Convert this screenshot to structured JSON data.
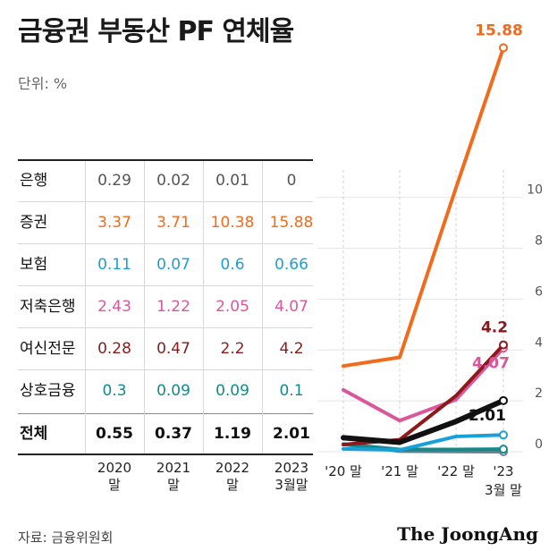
{
  "title": "금융권 부동산 PF 연체율",
  "unit": "단위: %",
  "source": "자료: 금융위원회",
  "brand": "The JoongAng",
  "table": {
    "columns": [
      {
        "line1": "2020",
        "line2": "말"
      },
      {
        "line1": "2021",
        "line2": "말"
      },
      {
        "line1": "2022",
        "line2": "말"
      },
      {
        "line1": "2023",
        "line2": "3월말"
      }
    ],
    "rows": [
      {
        "label": "은행",
        "color": "#555555",
        "values": [
          "0.29",
          "0.02",
          "0.01",
          "0"
        ]
      },
      {
        "label": "증권",
        "color": "#f26b1d",
        "values": [
          "3.37",
          "3.71",
          "10.38",
          "15.88"
        ]
      },
      {
        "label": "보험",
        "color": "#1aa0d8",
        "values": [
          "0.11",
          "0.07",
          "0.6",
          "0.66"
        ]
      },
      {
        "label": "저축은행",
        "color": "#d9579a",
        "values": [
          "2.43",
          "1.22",
          "2.05",
          "4.07"
        ]
      },
      {
        "label": "여신전문",
        "color": "#8c1a1a",
        "values": [
          "0.28",
          "0.47",
          "2.2",
          "4.2"
        ]
      },
      {
        "label": "상호금융",
        "color": "#138a8a",
        "values": [
          "0.3",
          "0.09",
          "0.09",
          "0.1"
        ]
      },
      {
        "label": "전체",
        "color": "#111111",
        "values": [
          "0.55",
          "0.37",
          "1.19",
          "2.01"
        ]
      }
    ]
  },
  "chart_data": {
    "type": "line",
    "categories": [
      "'20 말",
      "'21 말",
      "'22 말",
      "'23 3월 말"
    ],
    "yticks": [
      0,
      2,
      4,
      6,
      8,
      10
    ],
    "ylim": [
      0,
      16
    ],
    "series": [
      {
        "name": "은행",
        "color": "#6b7f8e",
        "values": [
          0.29,
          0.02,
          0.01,
          0
        ]
      },
      {
        "name": "상호금융",
        "color": "#138a8a",
        "values": [
          0.3,
          0.09,
          0.09,
          0.1
        ]
      },
      {
        "name": "보험",
        "color": "#1aa0d8",
        "values": [
          0.11,
          0.07,
          0.6,
          0.66
        ]
      },
      {
        "name": "저축은행",
        "color": "#d9579a",
        "values": [
          2.43,
          1.22,
          2.05,
          4.07
        ]
      },
      {
        "name": "여신전문",
        "color": "#8c1a1a",
        "values": [
          0.28,
          0.47,
          2.2,
          4.2
        ]
      },
      {
        "name": "증권",
        "color": "#f26b1d",
        "values": [
          3.37,
          3.71,
          10.38,
          15.88
        ]
      },
      {
        "name": "전체",
        "color": "#111111",
        "values": [
          0.55,
          0.37,
          1.19,
          2.01
        ]
      }
    ],
    "end_labels": [
      {
        "series": "증권",
        "text": "15.88"
      },
      {
        "series": "여신전문",
        "text": "4.2"
      },
      {
        "series": "저축은행",
        "text": "4.07"
      },
      {
        "series": "전체",
        "text": "2.01"
      }
    ]
  }
}
